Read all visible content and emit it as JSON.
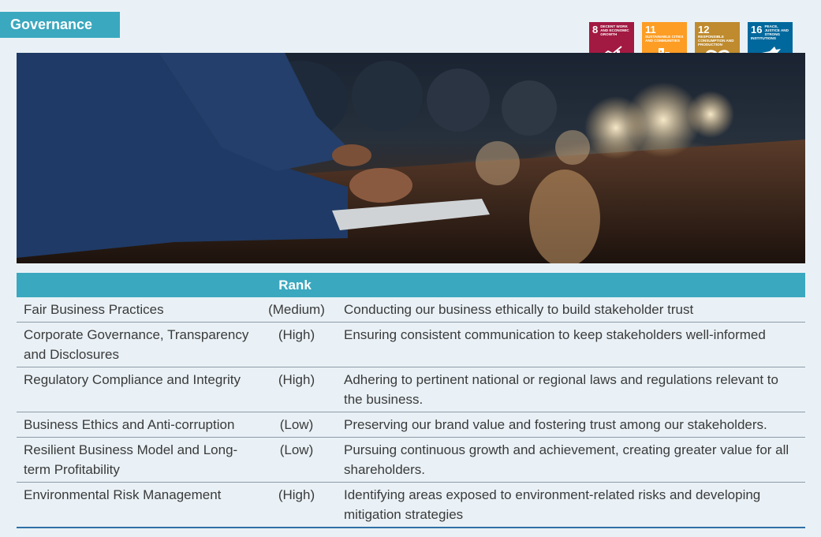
{
  "section_title": "Governance",
  "sdg_badges": [
    {
      "number": "8",
      "label": "Decent work and economic growth",
      "color": "#a21942",
      "icon": "growth-chart-icon"
    },
    {
      "number": "11",
      "label": "Sustainable cities and communities",
      "color": "#fd9d24",
      "icon": "city-buildings-icon"
    },
    {
      "number": "12",
      "label": "Responsible consumption and production",
      "color": "#bf8b2e",
      "icon": "infinity-icon"
    },
    {
      "number": "16",
      "label": "Peace, justice and strong institutions",
      "color": "#00689d",
      "icon": "dove-gavel-icon"
    }
  ],
  "table": {
    "header_rank": "Rank",
    "rows": [
      {
        "topic": "Fair Business Practices",
        "rank": "(Medium)",
        "description": "Conducting our business ethically to build stakeholder trust"
      },
      {
        "topic": "Corporate Governance, Transparency and Disclosures",
        "rank": "(High)",
        "description": "Ensuring consistent communication to keep stakeholders well-informed"
      },
      {
        "topic": "Regulatory Compliance and Integrity",
        "rank": "(High)",
        "description": "Adhering to pertinent national or regional laws and regulations relevant to the business."
      },
      {
        "topic": "Business Ethics and Anti-corruption",
        "rank": "(Low)",
        "description": "Preserving our brand value and fostering trust among our stakeholders."
      },
      {
        "topic": "Resilient Business Model and Long-term Profitability",
        "rank": "(Low)",
        "description": "Pursuing continuous growth and achievement, creating greater value for all shareholders."
      },
      {
        "topic": "Environmental Risk Management",
        "rank": "(High)",
        "description": "Identifying areas exposed to environment-related risks and developing mitigation strategies"
      }
    ]
  }
}
